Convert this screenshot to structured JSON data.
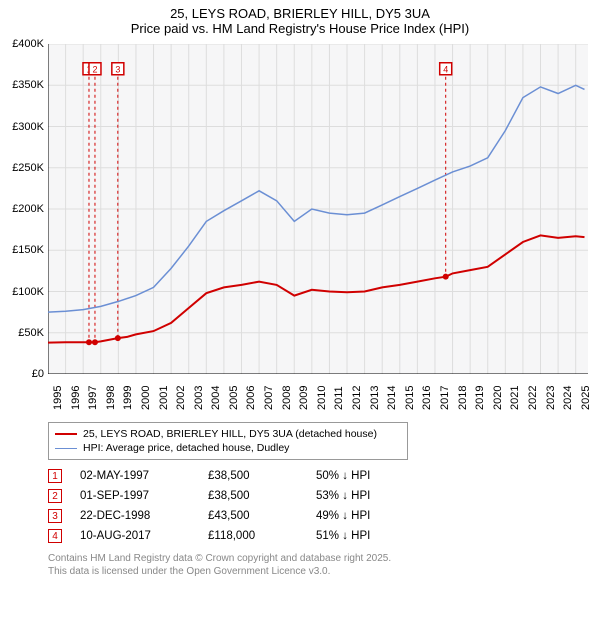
{
  "title": {
    "line1": "25, LEYS ROAD, BRIERLEY HILL, DY5 3UA",
    "line2": "Price paid vs. HM Land Registry's House Price Index (HPI)",
    "fontsize": 13,
    "color": "#000000"
  },
  "chart": {
    "type": "line",
    "background_color": "#f6f6f7",
    "grid_color": "#dddddd",
    "axis_color": "#000000",
    "yaxis": {
      "min": 0,
      "max": 400000,
      "tick_step": 50000,
      "ticks": [
        0,
        50000,
        100000,
        150000,
        200000,
        250000,
        300000,
        350000,
        400000
      ],
      "tick_labels": [
        "£0",
        "£50K",
        "£100K",
        "£150K",
        "£200K",
        "£250K",
        "£300K",
        "£350K",
        "£400K"
      ],
      "label_fontsize": 11
    },
    "xaxis": {
      "min": 1995,
      "max": 2025.7,
      "ticks": [
        1995,
        1996,
        1997,
        1998,
        1999,
        2000,
        2001,
        2002,
        2003,
        2004,
        2005,
        2006,
        2007,
        2008,
        2009,
        2010,
        2011,
        2012,
        2013,
        2014,
        2015,
        2016,
        2017,
        2018,
        2019,
        2020,
        2021,
        2022,
        2023,
        2024,
        2025
      ],
      "label_fontsize": 11
    },
    "series": [
      {
        "name": "price_paid",
        "label": "25, LEYS ROAD, BRIERLEY HILL, DY5 3UA (detached house)",
        "color": "#d00000",
        "line_width": 2,
        "data": [
          [
            1995,
            38000
          ],
          [
            1996,
            38500
          ],
          [
            1997,
            38500
          ],
          [
            1997.67,
            38500
          ],
          [
            1998,
            39500
          ],
          [
            1998.97,
            43500
          ],
          [
            1999.5,
            45000
          ],
          [
            2000,
            48000
          ],
          [
            2001,
            52000
          ],
          [
            2002,
            62000
          ],
          [
            2003,
            80000
          ],
          [
            2004,
            98000
          ],
          [
            2005,
            105000
          ],
          [
            2006,
            108000
          ],
          [
            2007,
            112000
          ],
          [
            2008,
            108000
          ],
          [
            2009,
            95000
          ],
          [
            2010,
            102000
          ],
          [
            2011,
            100000
          ],
          [
            2012,
            99000
          ],
          [
            2013,
            100000
          ],
          [
            2014,
            105000
          ],
          [
            2015,
            108000
          ],
          [
            2016,
            112000
          ],
          [
            2017,
            116000
          ],
          [
            2017.61,
            118000
          ],
          [
            2018,
            122000
          ],
          [
            2019,
            126000
          ],
          [
            2020,
            130000
          ],
          [
            2021,
            145000
          ],
          [
            2022,
            160000
          ],
          [
            2023,
            168000
          ],
          [
            2024,
            165000
          ],
          [
            2025,
            167000
          ],
          [
            2025.5,
            166000
          ]
        ]
      },
      {
        "name": "hpi",
        "label": "HPI: Average price, detached house, Dudley",
        "color": "#6b8fd4",
        "line_width": 1.5,
        "data": [
          [
            1995,
            75000
          ],
          [
            1996,
            76000
          ],
          [
            1997,
            78000
          ],
          [
            1998,
            82000
          ],
          [
            1999,
            88000
          ],
          [
            2000,
            95000
          ],
          [
            2001,
            105000
          ],
          [
            2002,
            128000
          ],
          [
            2003,
            155000
          ],
          [
            2004,
            185000
          ],
          [
            2005,
            198000
          ],
          [
            2006,
            210000
          ],
          [
            2007,
            222000
          ],
          [
            2008,
            210000
          ],
          [
            2009,
            185000
          ],
          [
            2010,
            200000
          ],
          [
            2011,
            195000
          ],
          [
            2012,
            193000
          ],
          [
            2013,
            195000
          ],
          [
            2014,
            205000
          ],
          [
            2015,
            215000
          ],
          [
            2016,
            225000
          ],
          [
            2017,
            235000
          ],
          [
            2018,
            245000
          ],
          [
            2019,
            252000
          ],
          [
            2020,
            262000
          ],
          [
            2021,
            295000
          ],
          [
            2022,
            335000
          ],
          [
            2023,
            348000
          ],
          [
            2024,
            340000
          ],
          [
            2025,
            350000
          ],
          [
            2025.5,
            345000
          ]
        ]
      }
    ],
    "markers": [
      {
        "n": "1",
        "x": 1997.33,
        "y": 38500,
        "label_y": 370000
      },
      {
        "n": "2",
        "x": 1997.67,
        "y": 38500,
        "label_y": 370000
      },
      {
        "n": "3",
        "x": 1998.97,
        "y": 43500,
        "label_y": 370000
      },
      {
        "n": "4",
        "x": 2017.61,
        "y": 118000,
        "label_y": 370000
      }
    ],
    "marker_style": {
      "border_color": "#d00000",
      "text_color": "#d00000",
      "size": 12,
      "fill": "#ffffff"
    }
  },
  "legend": {
    "items": [
      {
        "color": "#d00000",
        "label": "25, LEYS ROAD, BRIERLEY HILL, DY5 3UA (detached house)",
        "width": 2
      },
      {
        "color": "#6b8fd4",
        "label": "HPI: Average price, detached house, Dudley",
        "width": 1.5
      }
    ]
  },
  "sales": [
    {
      "n": "1",
      "date": "02-MAY-1997",
      "price": "£38,500",
      "pct": "50% ↓ HPI"
    },
    {
      "n": "2",
      "date": "01-SEP-1997",
      "price": "£38,500",
      "pct": "53% ↓ HPI"
    },
    {
      "n": "3",
      "date": "22-DEC-1998",
      "price": "£43,500",
      "pct": "49% ↓ HPI"
    },
    {
      "n": "4",
      "date": "10-AUG-2017",
      "price": "£118,000",
      "pct": "51% ↓ HPI"
    }
  ],
  "attribution": {
    "line1": "Contains HM Land Registry data © Crown copyright and database right 2025.",
    "line2": "This data is licensed under the Open Government Licence v3.0."
  }
}
